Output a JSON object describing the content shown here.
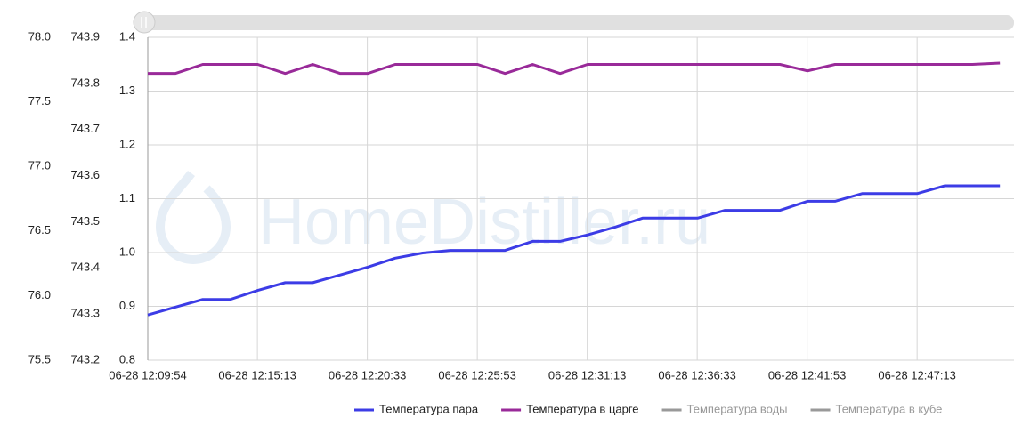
{
  "chart_data": {
    "type": "line",
    "watermark": "HomeDistiller.ru",
    "x": [
      "06-28 12:09:54",
      "06-28 12:11:14",
      "06-28 12:12:34",
      "06-28 12:13:54",
      "06-28 12:15:14",
      "06-28 12:16:34",
      "06-28 12:17:54",
      "06-28 12:19:14",
      "06-28 12:20:34",
      "06-28 12:21:54",
      "06-28 12:23:14",
      "06-28 12:24:34",
      "06-28 12:25:54",
      "06-28 12:27:14",
      "06-28 12:28:34",
      "06-28 12:29:54",
      "06-28 12:31:14",
      "06-28 12:32:34",
      "06-28 12:33:54",
      "06-28 12:35:14",
      "06-28 12:36:34",
      "06-28 12:37:54",
      "06-28 12:39:14",
      "06-28 12:40:34",
      "06-28 12:41:54",
      "06-28 12:43:14",
      "06-28 12:44:34",
      "06-28 12:45:54",
      "06-28 12:47:14",
      "06-28 12:48:34",
      "06-28 12:49:54",
      "06-28 12:51:14"
    ],
    "xlim": [
      "06-28 12:09:54",
      "06-28 12:51:55"
    ],
    "xticks": [
      "06-28 12:09:54",
      "06-28 12:15:13",
      "06-28 12:20:33",
      "06-28 12:25:53",
      "06-28 12:31:13",
      "06-28 12:36:33",
      "06-28 12:41:53",
      "06-28 12:47:13"
    ],
    "ylim": [
      75.5,
      78.0
    ],
    "yticks": [
      75.5,
      {
        "value": 76,
        "label": "76.0"
      },
      76.5,
      {
        "value": 77,
        "label": "77.0"
      },
      77.5,
      {
        "value": 78,
        "label": "78.0"
      }
    ],
    "y2lim": [
      743.2,
      743.9
    ],
    "y2ticks": [
      743.2,
      743.3,
      743.4,
      743.5,
      743.6,
      743.7,
      743.8,
      743.9
    ],
    "y3lim": [
      0.8,
      1.4
    ],
    "y3ticks": [
      0.8,
      0.9,
      {
        "value": 1,
        "label": "1.0"
      },
      1.1,
      1.2,
      1.3,
      1.4
    ],
    "grid": true,
    "series": [
      {
        "name": "Температура пара",
        "color": "#3c3ce6",
        "values": [
          75.85,
          75.91,
          75.97,
          75.97,
          76.04,
          76.1,
          76.1,
          76.16,
          76.22,
          76.29,
          76.33,
          76.35,
          76.35,
          76.35,
          76.42,
          76.42,
          76.47,
          76.53,
          76.6,
          76.6,
          76.6,
          76.66,
          76.66,
          76.66,
          76.73,
          76.73,
          76.79,
          76.79,
          76.79,
          76.85,
          76.85,
          76.85
        ]
      },
      {
        "name": "Температура в царге",
        "color": "#992a99",
        "values": [
          77.72,
          77.72,
          77.79,
          77.79,
          77.79,
          77.72,
          77.79,
          77.72,
          77.72,
          77.79,
          77.79,
          77.79,
          77.79,
          77.72,
          77.79,
          77.72,
          77.79,
          77.79,
          77.79,
          77.79,
          77.79,
          77.79,
          77.79,
          77.79,
          77.74,
          77.79,
          77.79,
          77.79,
          77.79,
          77.79,
          77.79,
          77.8
        ]
      },
      {
        "name": "Температура воды",
        "color": "#999999",
        "values": [
          null,
          null,
          null,
          null,
          null,
          null,
          null,
          null,
          null,
          null,
          null,
          null,
          null,
          null,
          null,
          null,
          null,
          null,
          null,
          null,
          null,
          null,
          null,
          null,
          null,
          null,
          null,
          null,
          null,
          null,
          null,
          null
        ]
      },
      {
        "name": "Температура в кубе",
        "color": "#999999",
        "values": [
          null,
          null,
          null,
          null,
          null,
          null,
          null,
          null,
          null,
          null,
          null,
          null,
          null,
          null,
          null,
          null,
          null,
          null,
          null,
          null,
          null,
          null,
          null,
          null,
          null,
          null,
          null,
          null,
          null,
          null,
          null,
          null
        ]
      }
    ]
  }
}
